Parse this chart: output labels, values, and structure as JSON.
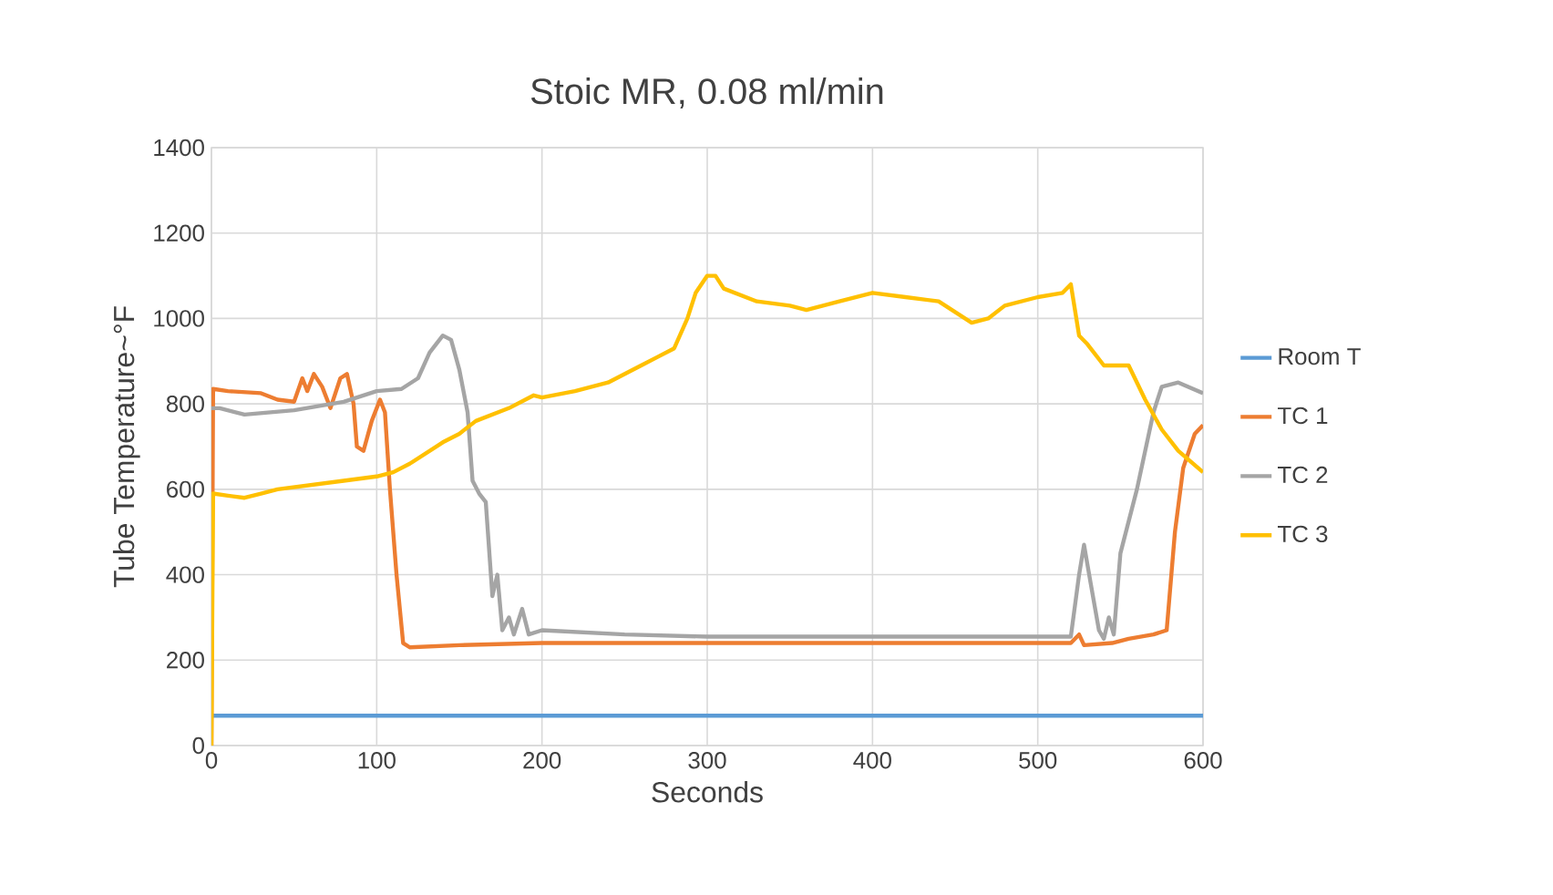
{
  "chart_data": {
    "type": "line",
    "title": "Stoic MR, 0.08 ml/min",
    "xlabel": "Seconds",
    "ylabel": "Tube Temperature~°F",
    "xlim": [
      0,
      600
    ],
    "xticks": [
      0,
      100,
      200,
      300,
      400,
      500,
      600
    ],
    "ylim": [
      0,
      1400
    ],
    "yticks": [
      0,
      200,
      400,
      600,
      800,
      1000,
      1200,
      1400
    ],
    "grid": true,
    "legend": "right",
    "marker": "none",
    "line_style": "solid",
    "series": [
      {
        "name": "Room T",
        "color": "#5b9bd5",
        "x": [
          0,
          600
        ],
        "values": [
          70,
          70
        ]
      },
      {
        "name": "TC 1",
        "color": "#ed7d31",
        "x": [
          0,
          1,
          10,
          30,
          40,
          50,
          55,
          58,
          62,
          67,
          72,
          78,
          82,
          86,
          88,
          92,
          97,
          102,
          105,
          108,
          112,
          116,
          120,
          150,
          200,
          250,
          300,
          350,
          400,
          450,
          500,
          520,
          525,
          528,
          545,
          555,
          570,
          578,
          583,
          588,
          595,
          600
        ],
        "values": [
          0,
          835,
          830,
          825,
          810,
          805,
          860,
          830,
          870,
          840,
          790,
          860,
          870,
          800,
          700,
          690,
          760,
          810,
          780,
          600,
          400,
          240,
          230,
          235,
          240,
          240,
          240,
          240,
          240,
          240,
          240,
          240,
          260,
          235,
          240,
          250,
          260,
          270,
          500,
          650,
          730,
          750
        ]
      },
      {
        "name": "TC 2",
        "color": "#a5a5a5",
        "x": [
          0,
          5,
          20,
          50,
          80,
          100,
          115,
          125,
          132,
          140,
          145,
          150,
          155,
          158,
          162,
          166,
          170,
          173,
          176,
          180,
          183,
          188,
          192,
          200,
          250,
          300,
          400,
          500,
          520,
          525,
          528,
          532,
          537,
          540,
          543,
          546,
          550,
          560,
          570,
          575,
          585,
          600
        ],
        "values": [
          790,
          790,
          775,
          785,
          805,
          830,
          835,
          860,
          920,
          960,
          950,
          880,
          780,
          620,
          590,
          570,
          350,
          400,
          270,
          300,
          260,
          320,
          260,
          270,
          260,
          255,
          255,
          255,
          255,
          400,
          470,
          380,
          270,
          250,
          300,
          260,
          450,
          600,
          780,
          840,
          850,
          825
        ]
      },
      {
        "name": "TC 3",
        "color": "#ffc000",
        "x": [
          0,
          1,
          10,
          20,
          30,
          40,
          60,
          80,
          100,
          110,
          120,
          140,
          150,
          160,
          180,
          195,
          200,
          220,
          240,
          260,
          270,
          280,
          288,
          293,
          300,
          305,
          310,
          330,
          350,
          360,
          380,
          400,
          420,
          440,
          460,
          470,
          480,
          500,
          515,
          520,
          525,
          530,
          540,
          555,
          565,
          575,
          585,
          600
        ],
        "values": [
          0,
          590,
          585,
          580,
          590,
          600,
          610,
          620,
          630,
          640,
          660,
          710,
          730,
          760,
          790,
          820,
          815,
          830,
          850,
          890,
          910,
          930,
          1000,
          1060,
          1100,
          1100,
          1070,
          1040,
          1030,
          1020,
          1040,
          1060,
          1050,
          1040,
          990,
          1000,
          1030,
          1050,
          1060,
          1080,
          960,
          940,
          890,
          890,
          810,
          740,
          690,
          640
        ]
      }
    ]
  }
}
